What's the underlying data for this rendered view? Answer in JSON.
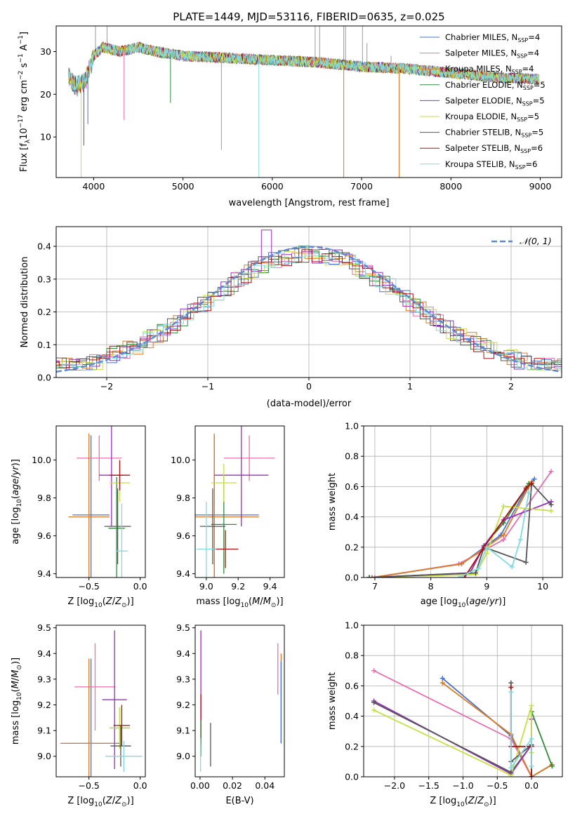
{
  "figure_title": "PLATE=1449, MJD=53116, FIBERID=0635, z=0.025",
  "colors": {
    "chabrier_miles": "#4a72c9",
    "salpeter_miles": "#e86fb0",
    "kroupa_miles": "#dd7a22",
    "chabrier_elodie": "#2e8b3a",
    "salpeter_elodie": "#9b2bc4",
    "kroupa_elodie": "#c8e042",
    "chabrier_stelib": "#555555",
    "salpeter_stelib": "#b01010",
    "kroupa_stelib": "#7fdbe0",
    "gauss": "#5b8bd6",
    "grid": "#b0b0b0"
  },
  "chart_data": [
    {
      "id": "spectrum",
      "type": "line",
      "title": "PLATE=1449, MJD=53116, FIBERID=0635, z=0.025",
      "xlabel": "wavelength [Angstrom, rest frame]",
      "ylabel_main": "Flux [f",
      "xlim": [
        3580,
        9240
      ],
      "ylim": [
        0.5,
        36
      ],
      "xticks": [
        "4000",
        "5000",
        "6000",
        "7000",
        "8000",
        "9000"
      ],
      "yticks": [
        "10",
        "20",
        "30"
      ],
      "series": [
        {
          "name": "Chabrier MILES, N",
          "sub": "SSP",
          "tail": "=4",
          "color": "#4a72c9"
        },
        {
          "name": "Salpeter MILES, N",
          "sub": "SSP",
          "tail": "=4",
          "color": "#e86fb0"
        },
        {
          "name": "Kroupa MILES, N",
          "sub": "SSP",
          "tail": "=4",
          "color": "#dd7a22"
        },
        {
          "name": "Chabrier ELODIE, N",
          "sub": "SSP",
          "tail": "=5",
          "color": "#2e8b3a"
        },
        {
          "name": "Salpeter ELODIE, N",
          "sub": "SSP",
          "tail": "=5",
          "color": "#9b2bc4"
        },
        {
          "name": "Kroupa ELODIE, N",
          "sub": "SSP",
          "tail": "=5",
          "color": "#c8e042"
        },
        {
          "name": "Chabrier STELIB, N",
          "sub": "SSP",
          "tail": "=5",
          "color": "#555555"
        },
        {
          "name": "Salpeter STELIB, N",
          "sub": "SSP",
          "tail": "=6",
          "color": "#b01010"
        },
        {
          "name": "Kroupa STELIB, N",
          "sub": "SSP",
          "tail": "=6",
          "color": "#7fdbe0"
        }
      ],
      "continuum": [
        [
          3720,
          24
        ],
        [
          3800,
          22
        ],
        [
          3900,
          23
        ],
        [
          4000,
          29
        ],
        [
          4100,
          31
        ],
        [
          4300,
          30
        ],
        [
          4500,
          31
        ],
        [
          4700,
          30
        ],
        [
          5000,
          29
        ],
        [
          5500,
          28.5
        ],
        [
          6000,
          28
        ],
        [
          6500,
          27.5
        ],
        [
          7000,
          26.5
        ],
        [
          7500,
          26
        ],
        [
          8000,
          25
        ],
        [
          8500,
          24
        ],
        [
          9000,
          23.5
        ]
      ],
      "gray_spikes": [
        [
          4020,
          36
        ],
        [
          4150,
          36
        ],
        [
          5430,
          7
        ],
        [
          6480,
          36
        ],
        [
          6530,
          36
        ],
        [
          6800,
          36
        ],
        [
          6820,
          36
        ],
        [
          7010,
          36
        ],
        [
          7060,
          32
        ],
        [
          7330,
          29
        ]
      ],
      "dips": [
        [
          3860,
          0.5
        ],
        [
          3890,
          8
        ],
        [
          3935,
          13
        ],
        [
          4340,
          14
        ],
        [
          4860,
          18
        ],
        [
          5850,
          0.5
        ],
        [
          6800,
          0.5
        ],
        [
          7420,
          0.5
        ]
      ]
    },
    {
      "id": "residual_hist",
      "type": "line",
      "xlabel": "(data-model)/error",
      "ylabel": "Normed distribution",
      "xlim": [
        -2.5,
        2.5
      ],
      "ylim": [
        0,
        0.46
      ],
      "xticks": [
        "−2",
        "−1",
        "0",
        "1",
        "2"
      ],
      "yticks": [
        "0.0",
        "0.1",
        "0.2",
        "0.3",
        "0.4"
      ],
      "legend": "𝒩(0, 1)"
    },
    {
      "id": "age_vs_Z",
      "type": "scatter",
      "xlabel": "Z [log10(Z/Z⊙)]",
      "ylabel": "age  [log10(age/yr)]",
      "xlim": [
        -0.82,
        0.05
      ],
      "ylim": [
        9.38,
        10.18
      ],
      "xticks": [
        "−0.5",
        "0.0"
      ],
      "yticks": [
        "9.4",
        "9.6",
        "9.8",
        "10.0"
      ],
      "points": [
        {
          "c": "chabrier_miles",
          "x": -0.48,
          "xe": 0.18,
          "y": 9.71,
          "ye": 0.42
        },
        {
          "c": "salpeter_miles",
          "x": -0.4,
          "xe": 0.22,
          "y": 10.01,
          "ye": 0.12
        },
        {
          "c": "kroupa_miles",
          "x": -0.5,
          "xe": 0.2,
          "y": 9.7,
          "ye": 0.44
        },
        {
          "c": "chabrier_elodie",
          "x": -0.23,
          "xe": 0.08,
          "y": 9.64,
          "ye": 0.27
        },
        {
          "c": "salpeter_elodie",
          "x": -0.28,
          "xe": 0.12,
          "y": 9.92,
          "ye": 0.27
        },
        {
          "c": "kroupa_elodie",
          "x": -0.2,
          "xe": 0.1,
          "y": 9.88,
          "ye": 0.1
        },
        {
          "c": "chabrier_stelib",
          "x": -0.22,
          "xe": 0.13,
          "y": 9.65,
          "ye": 0.2
        },
        {
          "c": "salpeter_stelib",
          "x": -0.2,
          "xe": 0.1,
          "y": 9.92,
          "ye": 0.08
        },
        {
          "c": "kroupa_stelib",
          "x": -0.18,
          "xe": 0.06,
          "y": 9.52,
          "ye": 0.25
        }
      ]
    },
    {
      "id": "age_vs_mass",
      "type": "scatter",
      "xlabel": "mass [log10(M/M⊙)]",
      "ylabel": "",
      "xlim": [
        8.93,
        9.49
      ],
      "ylim": [
        9.38,
        10.18
      ],
      "xticks": [
        "9.0",
        "9.2",
        "9.4"
      ],
      "yticks": [
        "9.4",
        "9.6",
        "9.8",
        "10.0"
      ],
      "points": [
        {
          "c": "chabrier_miles",
          "x": 9.05,
          "xe": 0.28,
          "y": 9.71,
          "ye": 0.42
        },
        {
          "c": "salpeter_miles",
          "x": 9.27,
          "xe": 0.16,
          "y": 10.01,
          "ye": 0.12
        },
        {
          "c": "kroupa_miles",
          "x": 9.05,
          "xe": 0.28,
          "y": 9.7,
          "ye": 0.44
        },
        {
          "c": "chabrier_elodie",
          "x": 9.11,
          "xe": 0.08,
          "y": 9.66,
          "ye": 0.26
        },
        {
          "c": "salpeter_elodie",
          "x": 9.22,
          "xe": 0.17,
          "y": 9.92,
          "ye": 0.27
        },
        {
          "c": "kroupa_elodie",
          "x": 9.11,
          "xe": 0.08,
          "y": 9.88,
          "ye": 0.1
        },
        {
          "c": "chabrier_stelib",
          "x": 9.04,
          "xe": 0.08,
          "y": 9.65,
          "ye": 0.2
        },
        {
          "c": "salpeter_stelib",
          "x": 9.12,
          "xe": 0.08,
          "y": 9.53,
          "ye": 0.1
        },
        {
          "c": "kroupa_stelib",
          "x": 9.0,
          "xe": 0.06,
          "y": 9.53,
          "ye": 0.25
        }
      ]
    },
    {
      "id": "mass_vs_Z",
      "type": "scatter",
      "xlabel": "Z [log10(Z/Z⊙)]",
      "ylabel": "mass [log10(M/M⊙)]",
      "xlim": [
        -0.82,
        0.05
      ],
      "ylim": [
        8.92,
        9.51
      ],
      "xticks": [
        "−0.5",
        "0.0"
      ],
      "yticks": [
        "9.0",
        "9.1",
        "9.2",
        "9.3",
        "9.4",
        "9.5"
      ],
      "points": [
        {
          "c": "chabrier_miles",
          "x": -0.48,
          "xe": 0.28,
          "y": 9.05,
          "ye": 0.33
        },
        {
          "c": "salpeter_miles",
          "x": -0.44,
          "xe": 0.2,
          "y": 9.27,
          "ye": 0.17
        },
        {
          "c": "kroupa_miles",
          "x": -0.5,
          "xe": 0.28,
          "y": 9.05,
          "ye": 0.33
        },
        {
          "c": "chabrier_elodie",
          "x": -0.2,
          "xe": 0.1,
          "y": 9.11,
          "ye": 0.08
        },
        {
          "c": "salpeter_elodie",
          "x": -0.25,
          "xe": 0.12,
          "y": 9.22,
          "ye": 0.27
        },
        {
          "c": "kroupa_elodie",
          "x": -0.2,
          "xe": 0.1,
          "y": 9.11,
          "ye": 0.08
        },
        {
          "c": "chabrier_stelib",
          "x": -0.19,
          "xe": 0.1,
          "y": 9.04,
          "ye": 0.08
        },
        {
          "c": "salpeter_stelib",
          "x": -0.18,
          "xe": 0.08,
          "y": 9.12,
          "ye": 0.08
        },
        {
          "c": "kroupa_stelib",
          "x": -0.16,
          "xe": 0.18,
          "y": 9.0,
          "ye": 0.06
        }
      ]
    },
    {
      "id": "mass_vs_ebv",
      "type": "scatter",
      "xlabel": "E(B-V)",
      "ylabel": "",
      "xlim": [
        -0.003,
        0.052
      ],
      "ylim": [
        8.92,
        9.51
      ],
      "xticks": [
        "0.00",
        "0.02",
        "0.04"
      ],
      "yticks": [
        "9.0",
        "9.1",
        "9.2",
        "9.3",
        "9.4",
        "9.5"
      ],
      "vbars": [
        {
          "c": "kroupa_miles",
          "x": 0.05,
          "y0": 9.05,
          "y1": 9.4
        },
        {
          "c": "chabrier_miles",
          "x": 0.05,
          "y0": 9.05,
          "y1": 9.37
        },
        {
          "c": "salpeter_miles",
          "x": 0.048,
          "y0": 9.24,
          "y1": 9.44
        },
        {
          "c": "salpeter_elodie",
          "x": 0.0005,
          "y0": 9.04,
          "y1": 9.49
        },
        {
          "c": "salpeter_stelib",
          "x": 0.0005,
          "y0": 9.05,
          "y1": 9.24
        },
        {
          "c": "chabrier_elodie",
          "x": 0.0005,
          "y0": 9.0,
          "y1": 9.14
        },
        {
          "c": "kroupa_stelib",
          "x": 0.0003,
          "y0": 8.94,
          "y1": 9.07
        },
        {
          "c": "chabrier_stelib",
          "x": 0.0065,
          "y0": 8.96,
          "y1": 9.13
        }
      ]
    },
    {
      "id": "weight_vs_age",
      "type": "line",
      "xlabel": "age  [log10(age/yr)]",
      "ylabel": "mass weight",
      "xlim": [
        6.8,
        10.35
      ],
      "ylim": [
        0,
        1.0
      ],
      "xticks": [
        "7",
        "8",
        "9",
        "10"
      ],
      "yticks": [
        "0.0",
        "0.2",
        "0.4",
        "0.6",
        "0.8",
        "1.0"
      ],
      "series": [
        {
          "c": "chabrier_miles",
          "pts": [
            [
              6.95,
              0.0
            ],
            [
              8.55,
              0.09
            ],
            [
              9.25,
              0.28
            ],
            [
              9.7,
              0.58
            ],
            [
              9.85,
              0.65
            ]
          ]
        },
        {
          "c": "salpeter_miles",
          "pts": [
            [
              7.0,
              0.0
            ],
            [
              8.5,
              0.09
            ],
            [
              9.3,
              0.25
            ],
            [
              10.15,
              0.7
            ]
          ]
        },
        {
          "c": "kroupa_miles",
          "pts": [
            [
              6.95,
              0.0
            ],
            [
              8.55,
              0.09
            ],
            [
              9.3,
              0.28
            ],
            [
              9.75,
              0.6
            ],
            [
              9.8,
              0.63
            ]
          ]
        },
        {
          "c": "chabrier_elodie",
          "pts": [
            [
              6.9,
              0.0
            ],
            [
              8.7,
              0.03
            ],
            [
              8.95,
              0.21
            ],
            [
              9.3,
              0.36
            ],
            [
              9.75,
              0.62
            ]
          ]
        },
        {
          "c": "salpeter_elodie",
          "pts": [
            [
              6.9,
              0.0
            ],
            [
              8.7,
              0.03
            ],
            [
              8.95,
              0.21
            ],
            [
              9.3,
              0.38
            ],
            [
              10.15,
              0.5
            ]
          ]
        },
        {
          "c": "kroupa_elodie",
          "pts": [
            [
              6.9,
              0.0
            ],
            [
              8.8,
              0.02
            ],
            [
              9.0,
              0.16
            ],
            [
              9.3,
              0.47
            ],
            [
              10.15,
              0.44
            ]
          ]
        },
        {
          "c": "chabrier_stelib",
          "pts": [
            [
              6.9,
              0.0
            ],
            [
              8.8,
              0.03
            ],
            [
              8.95,
              0.2
            ],
            [
              9.7,
              0.1
            ],
            [
              9.8,
              0.62
            ],
            [
              10.15,
              0.48
            ]
          ]
        },
        {
          "c": "salpeter_stelib",
          "pts": [
            [
              8.6,
              0.0
            ],
            [
              8.95,
              0.2
            ],
            [
              9.7,
              0.59
            ],
            [
              9.8,
              0.62
            ]
          ]
        },
        {
          "c": "kroupa_stelib",
          "pts": [
            [
              8.5,
              0.0
            ],
            [
              8.85,
              0.06
            ],
            [
              9.0,
              0.2
            ],
            [
              9.45,
              0.07
            ],
            [
              9.6,
              0.25
            ],
            [
              9.75,
              0.56
            ]
          ]
        }
      ]
    },
    {
      "id": "weight_vs_Z",
      "type": "line",
      "xlabel": "Z [log10(Z/Z⊙)]",
      "ylabel": "mass weight",
      "xlim": [
        -2.45,
        0.45
      ],
      "ylim": [
        0,
        1.0
      ],
      "xticks": [
        "−2.0",
        "−1.5",
        "−1.0",
        "−0.5",
        "0.0"
      ],
      "yticks": [
        "0.0",
        "0.2",
        "0.4",
        "0.6",
        "0.8",
        "1.0"
      ],
      "series": [
        {
          "c": "chabrier_miles",
          "pts": [
            [
              -1.3,
              0.65
            ],
            [
              -0.3,
              0.27
            ],
            [
              0.0,
              0.0
            ],
            [
              0.3,
              0.08
            ]
          ]
        },
        {
          "c": "salpeter_miles",
          "pts": [
            [
              -2.3,
              0.7
            ],
            [
              -0.3,
              0.25
            ],
            [
              0.0,
              0.0
            ],
            [
              0.3,
              0.08
            ]
          ]
        },
        {
          "c": "kroupa_miles",
          "pts": [
            [
              -1.3,
              0.62
            ],
            [
              -0.3,
              0.28
            ],
            [
              0.0,
              0.0
            ],
            [
              0.3,
              0.08
            ]
          ]
        },
        {
          "c": "chabrier_elodie",
          "pts": [
            [
              -0.3,
              0.03
            ],
            [
              0.0,
              0.21
            ],
            [
              0.0,
              0.43
            ],
            [
              0.3,
              0.07
            ]
          ]
        },
        {
          "c": "salpeter_elodie",
          "pts": [
            [
              -2.3,
              0.5
            ],
            [
              -0.3,
              0.02
            ],
            [
              0.0,
              0.21
            ],
            [
              0.0,
              0.38
            ]
          ]
        },
        {
          "c": "kroupa_elodie",
          "pts": [
            [
              -2.3,
              0.44
            ],
            [
              -0.3,
              0.01
            ],
            [
              0.0,
              0.47
            ],
            [
              0.0,
              0.16
            ]
          ]
        },
        {
          "c": "chabrier_stelib",
          "pts": [
            [
              -2.3,
              0.49
            ],
            [
              -0.3,
              0.03
            ],
            [
              -0.3,
              0.62
            ],
            [
              -0.3,
              0.1
            ],
            [
              0.0,
              0.21
            ],
            [
              0.0,
              0.0
            ]
          ]
        },
        {
          "c": "salpeter_stelib",
          "pts": [
            [
              -0.3,
              0.59
            ],
            [
              -0.3,
              0.2
            ],
            [
              0.0,
              0.2
            ],
            [
              0.0,
              0.0
            ]
          ]
        },
        {
          "c": "kroupa_stelib",
          "pts": [
            [
              -0.3,
              0.56
            ],
            [
              -0.3,
              0.06
            ],
            [
              0.0,
              0.25
            ],
            [
              0.0,
              0.07
            ]
          ]
        }
      ]
    }
  ]
}
